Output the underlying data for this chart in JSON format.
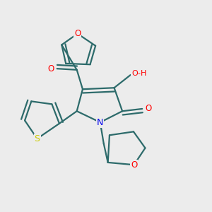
{
  "bg_color": "#ececec",
  "bond_color": "#2d6b6b",
  "atom_colors": {
    "O": "#ff0000",
    "N": "#0000ee",
    "S": "#cccc00",
    "C": "#2d6b6b"
  },
  "line_width": 1.6,
  "dbo": 0.016,
  "figsize": [
    3.0,
    3.0
  ],
  "dpi": 100
}
